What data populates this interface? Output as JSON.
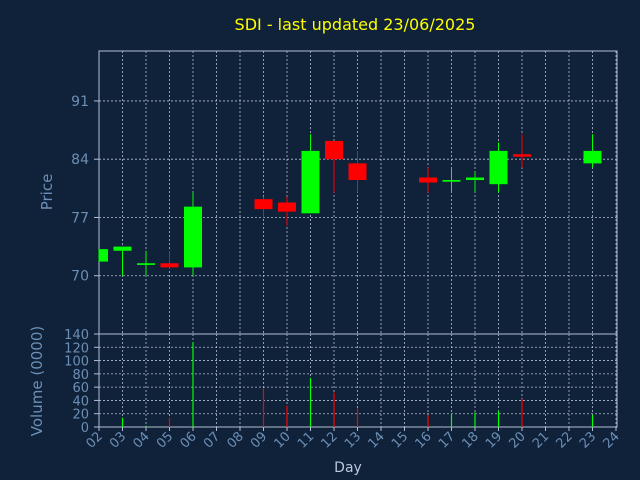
{
  "header": {
    "title": "SDI - last updated 23/06/2025"
  },
  "chart_data": [
    {
      "type": "candlestick",
      "ylabel": "Price",
      "ylim": [
        63,
        97
      ],
      "yticks": [
        70,
        77,
        84,
        91
      ],
      "grid": true,
      "colors": {
        "up": "#00ff00",
        "down": "#ff0000",
        "background": "#10213a",
        "grid": "#b4bed2",
        "text": "#6c8fb5",
        "title": "#ffff00"
      },
      "candles": [
        {
          "day": "02",
          "open": 71.7,
          "high": 73.2,
          "low": 71.7,
          "close": 73.2
        },
        {
          "day": "03",
          "open": 73.0,
          "high": 73.5,
          "low": 70.0,
          "close": 73.5
        },
        {
          "day": "04",
          "open": 71.3,
          "high": 73.0,
          "low": 70.0,
          "close": 71.5
        },
        {
          "day": "05",
          "open": 71.5,
          "high": 73.0,
          "low": 70.8,
          "close": 71.0
        },
        {
          "day": "06",
          "open": 71.0,
          "high": 80.0,
          "low": 70.0,
          "close": 78.3
        },
        {
          "day": "09",
          "open": 79.2,
          "high": 79.5,
          "low": 77.0,
          "close": 78.0
        },
        {
          "day": "10",
          "open": 78.8,
          "high": 79.5,
          "low": 76.0,
          "close": 77.7
        },
        {
          "day": "11",
          "open": 77.5,
          "high": 87.0,
          "low": 77.5,
          "close": 85.0
        },
        {
          "day": "12",
          "open": 86.2,
          "high": 86.2,
          "low": 80.0,
          "close": 84.0
        },
        {
          "day": "13",
          "open": 83.5,
          "high": 85.0,
          "low": 80.0,
          "close": 81.5
        },
        {
          "day": "16",
          "open": 81.8,
          "high": 83.0,
          "low": 80.0,
          "close": 81.2
        },
        {
          "day": "17",
          "open": 81.3,
          "high": 83.0,
          "low": 80.0,
          "close": 81.5
        },
        {
          "day": "18",
          "open": 81.5,
          "high": 82.5,
          "low": 80.0,
          "close": 81.8
        },
        {
          "day": "19",
          "open": 81.0,
          "high": 86.0,
          "low": 80.0,
          "close": 85.0
        },
        {
          "day": "20",
          "open": 84.6,
          "high": 87.0,
          "low": 83.0,
          "close": 84.3
        },
        {
          "day": "23",
          "open": 83.5,
          "high": 87.0,
          "low": 83.0,
          "close": 85.0
        }
      ]
    },
    {
      "type": "bar",
      "ylabel": "Volume (0000)",
      "xlabel": "Day",
      "ylim": [
        0,
        140
      ],
      "yticks": [
        0,
        20,
        40,
        60,
        80,
        100,
        120,
        140
      ],
      "grid": true,
      "categories": [
        "02",
        "03",
        "04",
        "05",
        "06",
        "07",
        "08",
        "09",
        "10",
        "11",
        "12",
        "13",
        "14",
        "15",
        "16",
        "17",
        "18",
        "19",
        "20",
        "21",
        "22",
        "23",
        "24"
      ],
      "volumes": [
        {
          "day": "03",
          "value": 14,
          "direction": "up"
        },
        {
          "day": "04",
          "value": 2,
          "direction": "up"
        },
        {
          "day": "05",
          "value": 14,
          "direction": "down"
        },
        {
          "day": "06",
          "value": 128,
          "direction": "up"
        },
        {
          "day": "09",
          "value": 58,
          "direction": "down"
        },
        {
          "day": "10",
          "value": 32,
          "direction": "down"
        },
        {
          "day": "11",
          "value": 74,
          "direction": "up"
        },
        {
          "day": "12",
          "value": 52,
          "direction": "down"
        },
        {
          "day": "13",
          "value": 28,
          "direction": "down"
        },
        {
          "day": "16",
          "value": 18,
          "direction": "down"
        },
        {
          "day": "17",
          "value": 20,
          "direction": "up"
        },
        {
          "day": "18",
          "value": 22,
          "direction": "up"
        },
        {
          "day": "19",
          "value": 24,
          "direction": "up"
        },
        {
          "day": "20",
          "value": 42,
          "direction": "down"
        },
        {
          "day": "23",
          "value": 18,
          "direction": "up"
        }
      ]
    }
  ]
}
